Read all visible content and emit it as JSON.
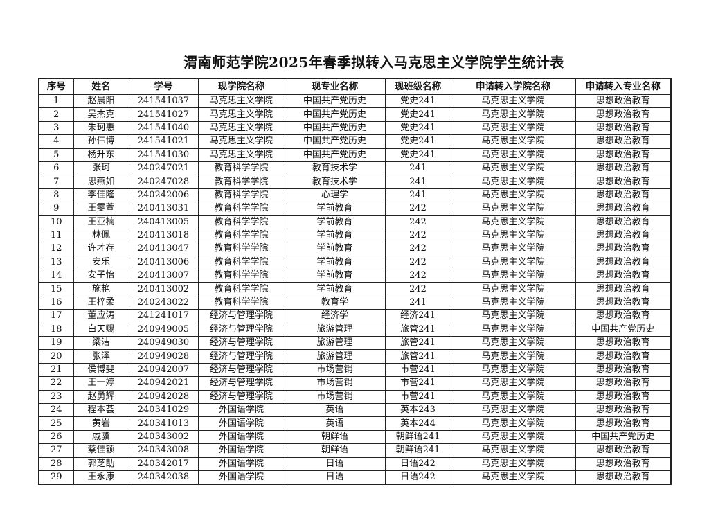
{
  "title": "渭南师范学院2025年春季拟转入马克思主义学院学生统计表",
  "columns": [
    "序号",
    "姓名",
    "学号",
    "现学院名称",
    "现专业名称",
    "现班级名称",
    "申请转入学院名称",
    "申请转入专业名称"
  ],
  "rows": [
    [
      "1",
      "赵晨阳",
      "241541037",
      "马克思主义学院",
      "中国共产党历史",
      "党史241",
      "马克思主义学院",
      "思想政治教育"
    ],
    [
      "2",
      "吴杰克",
      "241541027",
      "马克思主义学院",
      "中国共产党历史",
      "党史241",
      "马克思主义学院",
      "思想政治教育"
    ],
    [
      "3",
      "朱珂惠",
      "241541040",
      "马克思主义学院",
      "中国共产党历史",
      "党史241",
      "马克思主义学院",
      "思想政治教育"
    ],
    [
      "4",
      "孙伟博",
      "241541021",
      "马克思主义学院",
      "中国共产党历史",
      "党史241",
      "马克思主义学院",
      "思想政治教育"
    ],
    [
      "5",
      "杨升东",
      "241541030",
      "马克思主义学院",
      "中国共产党历史",
      "党史241",
      "马克思主义学院",
      "思想政治教育"
    ],
    [
      "6",
      "张珂",
      "240247021",
      "教育科学学院",
      "教育技术学",
      "241",
      "马克思主义学院",
      "思想政治教育"
    ],
    [
      "7",
      "思燕如",
      "240247028",
      "教育科学学院",
      "教育技术学",
      "241",
      "马克思主义学院",
      "思想政治教育"
    ],
    [
      "8",
      "李佳隆",
      "240242006",
      "教育科学学院",
      "心理学",
      "241",
      "马克思主义学院",
      "思想政治教育"
    ],
    [
      "9",
      "王雯萱",
      "240413031",
      "教育科学学院",
      "学前教育",
      "242",
      "马克思主义学院",
      "思想政治教育"
    ],
    [
      "10",
      "王亚楠",
      "240413005",
      "教育科学学院",
      "学前教育",
      "242",
      "马克思主义学院",
      "思想政治教育"
    ],
    [
      "11",
      "林佩",
      "240413018",
      "教育科学学院",
      "学前教育",
      "242",
      "马克思主义学院",
      "思想政治教育"
    ],
    [
      "12",
      "许才存",
      "240413047",
      "教育科学学院",
      "学前教育",
      "242",
      "马克思主义学院",
      "思想政治教育"
    ],
    [
      "13",
      "安乐",
      "240413006",
      "教育科学学院",
      "学前教育",
      "242",
      "马克思主义学院",
      "思想政治教育"
    ],
    [
      "14",
      "安子怡",
      "240413007",
      "教育科学学院",
      "学前教育",
      "242",
      "马克思主义学院",
      "思想政治教育"
    ],
    [
      "15",
      "施艳",
      "240413002",
      "教育科学学院",
      "学前教育",
      "242",
      "马克思主义学院",
      "思想政治教育"
    ],
    [
      "16",
      "王梓柔",
      "240243022",
      "教育科学学院",
      "教育学",
      "241",
      "马克思主义学院",
      "思想政治教育"
    ],
    [
      "17",
      "董应涛",
      "241241017",
      "经济与管理学院",
      "经济学",
      "经济241",
      "马克思主义学院",
      "思想政治教育"
    ],
    [
      "18",
      "白天赐",
      "240949005",
      "经济与管理学院",
      "旅游管理",
      "旅管241",
      "马克思主义学院",
      "中国共产党历史"
    ],
    [
      "19",
      "梁洁",
      "240949030",
      "经济与管理学院",
      "旅游管理",
      "旅管241",
      "马克思主义学院",
      "思想政治教育"
    ],
    [
      "20",
      "张泽",
      "240949028",
      "经济与管理学院",
      "旅游管理",
      "旅管241",
      "马克思主义学院",
      "思想政治教育"
    ],
    [
      "21",
      "侯博斐",
      "240942007",
      "经济与管理学院",
      "市场营销",
      "市营241",
      "马克思主义学院",
      "思想政治教育"
    ],
    [
      "22",
      "王一婷",
      "240942021",
      "经济与管理学院",
      "市场营销",
      "市营241",
      "马克思主义学院",
      "思想政治教育"
    ],
    [
      "23",
      "赵勇辉",
      "240942028",
      "经济与管理学院",
      "市场营销",
      "市营241",
      "马克思主义学院",
      "思想政治教育"
    ],
    [
      "24",
      "程本荟",
      "240341029",
      "外国语学院",
      "英语",
      "英本243",
      "马克思主义学院",
      "思想政治教育"
    ],
    [
      "25",
      "黄岩",
      "240341013",
      "外国语学院",
      "英语",
      "英本244",
      "马克思主义学院",
      "思想政治教育"
    ],
    [
      "26",
      "戚骥",
      "240343002",
      "外国语学院",
      "朝鲜语",
      "朝鲜语241",
      "马克思主义学院",
      "中国共产党历史"
    ],
    [
      "27",
      "蔡佳颖",
      "240343008",
      "外国语学院",
      "朝鲜语",
      "朝鲜语241",
      "马克思主义学院",
      "思想政治教育"
    ],
    [
      "28",
      "郭芝劼",
      "240342017",
      "外国语学院",
      "日语",
      "日语242",
      "马克思主义学院",
      "思想政治教育"
    ],
    [
      "29",
      "王永康",
      "240342038",
      "外国语学院",
      "日语",
      "日语242",
      "马克思主义学院",
      "思想政治教育"
    ]
  ]
}
